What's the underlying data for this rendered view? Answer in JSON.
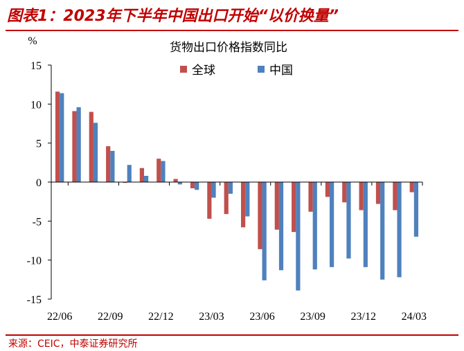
{
  "figure": {
    "title": "图表1：2023年下半年中国出口开始“以价换量”",
    "source": "来源：CEIC，中泰证券研究所"
  },
  "colors": {
    "accent": "#c00000",
    "global": "#c0504d",
    "china": "#4f81bd"
  },
  "chart_data": {
    "type": "bar",
    "title": "货物出口价格指数同比",
    "ylabel": "%",
    "ylim": [
      -15,
      15
    ],
    "yticks": [
      15,
      10,
      5,
      0,
      -5,
      -10,
      -15
    ],
    "grid": false,
    "legend_position": "top-center",
    "categories": [
      "22/06",
      "22/07",
      "22/08",
      "22/09",
      "22/10",
      "22/11",
      "22/12",
      "23/01",
      "23/02",
      "23/03",
      "23/04",
      "23/05",
      "23/06",
      "23/07",
      "23/08",
      "23/09",
      "23/10",
      "23/11",
      "23/12",
      "24/01",
      "24/02",
      "24/03"
    ],
    "xtick_labels": [
      "22/06",
      "22/09",
      "22/12",
      "23/03",
      "23/06",
      "23/09",
      "23/12",
      "24/03"
    ],
    "series": [
      {
        "name": "全球",
        "color": "#c0504d",
        "values": [
          11.6,
          9.1,
          9.0,
          4.6,
          -0.1,
          1.8,
          3.0,
          0.4,
          -0.8,
          -4.7,
          -4.1,
          -5.8,
          -8.6,
          -6.1,
          -6.4,
          -3.8,
          -1.9,
          -2.6,
          -3.6,
          -2.8,
          -3.6,
          -1.3
        ]
      },
      {
        "name": "中国",
        "color": "#4f81bd",
        "values": [
          11.4,
          9.6,
          7.6,
          4.0,
          2.2,
          0.8,
          2.7,
          -0.3,
          -1.0,
          -2.0,
          -1.5,
          -4.4,
          -12.6,
          -11.3,
          -13.9,
          -11.2,
          -10.9,
          -9.8,
          -10.9,
          -12.5,
          -12.2,
          -7.0
        ]
      }
    ]
  }
}
